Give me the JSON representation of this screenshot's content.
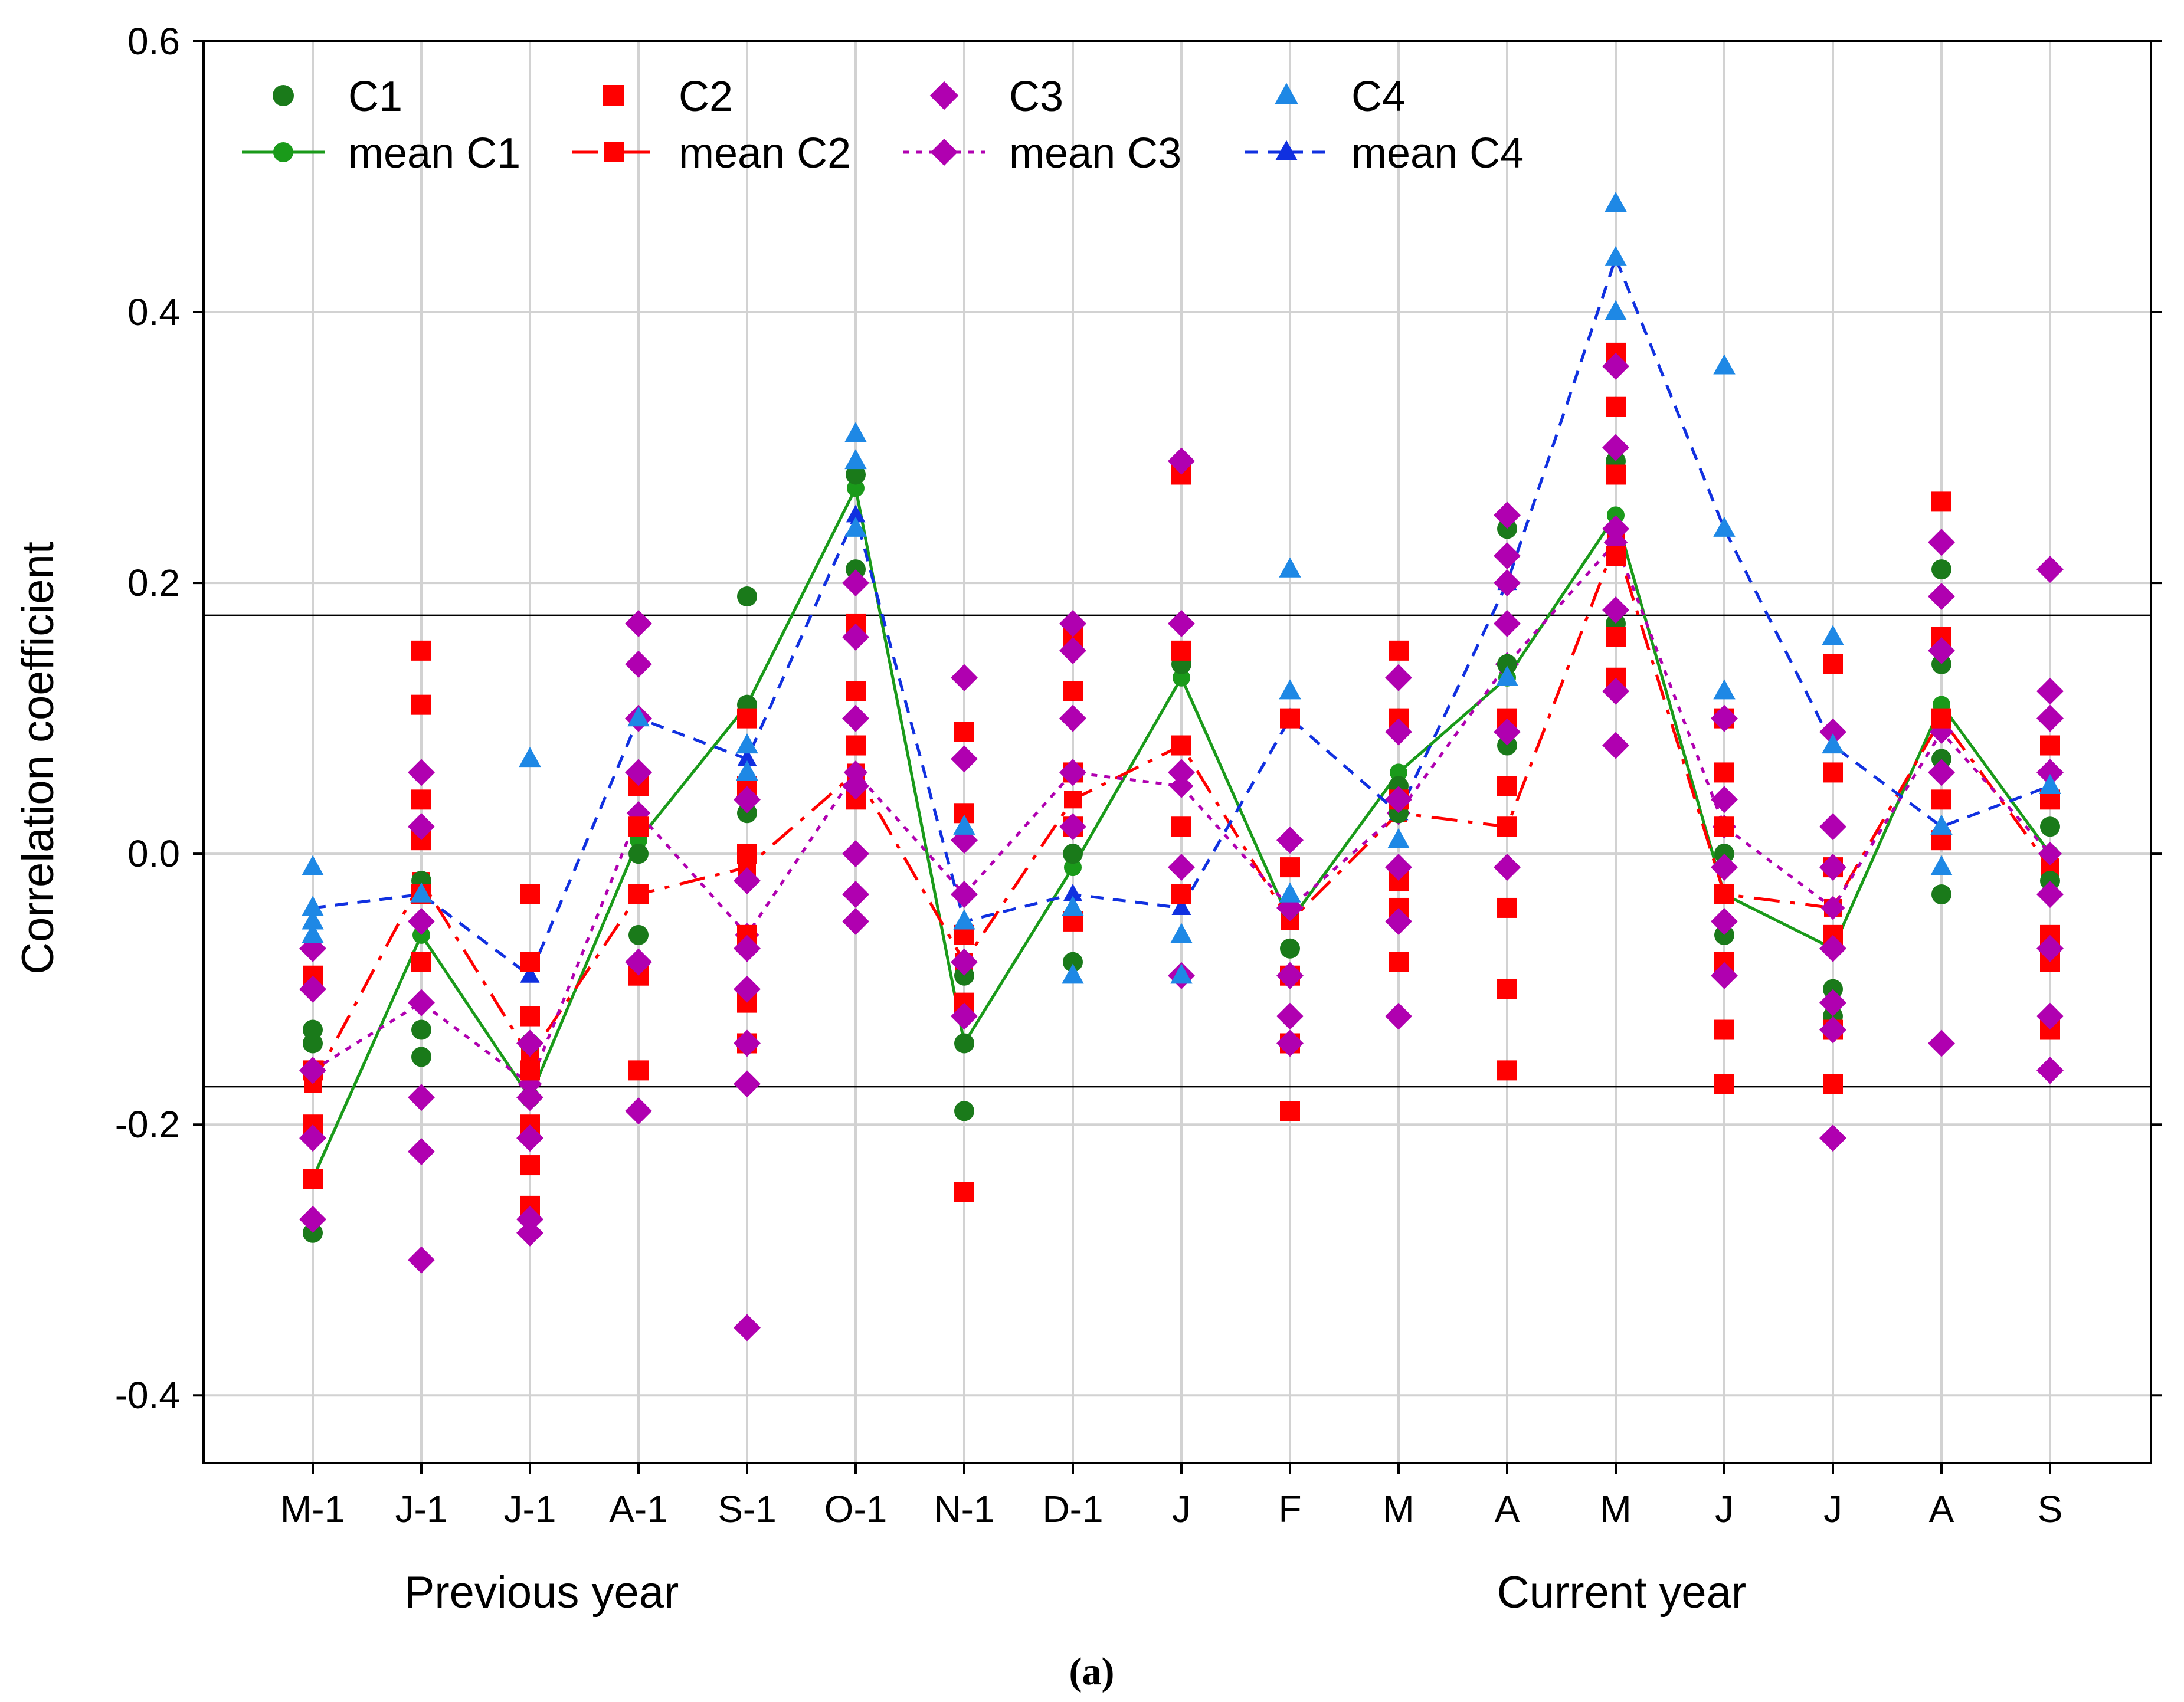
{
  "chart_data": {
    "type": "scatter",
    "ylabel": "Correlation coefficient",
    "ylim": [
      -0.45,
      0.6
    ],
    "yticks": [
      "0.6",
      "0.4",
      "0.2",
      "0.0",
      "-0.2",
      "-0.4"
    ],
    "categories": [
      "M-1",
      "J-1",
      "J-1",
      "A-1",
      "S-1",
      "O-1",
      "N-1",
      "D-1",
      "J",
      "F",
      "M",
      "A",
      "M",
      "J",
      "J",
      "A",
      "S"
    ],
    "group_labels": [
      "Previous year",
      "Current year"
    ],
    "caption": "(a)",
    "grid": true,
    "legend_position": "top-left",
    "significance_lines": [
      0.176,
      -0.172
    ],
    "series": [
      {
        "name": "C1",
        "marker": "circle",
        "color": "#1a7a1a",
        "points": [
          [
            0,
            -0.13
          ],
          [
            0,
            -0.14
          ],
          [
            0,
            -0.24
          ],
          [
            0,
            -0.28
          ],
          [
            1,
            -0.02
          ],
          [
            1,
            -0.13
          ],
          [
            1,
            -0.15
          ],
          [
            2,
            -0.14
          ],
          [
            2,
            -0.16
          ],
          [
            2,
            -0.18
          ],
          [
            3,
            0.05
          ],
          [
            3,
            0.0
          ],
          [
            3,
            -0.06
          ],
          [
            4,
            0.19
          ],
          [
            4,
            0.11
          ],
          [
            4,
            0.03
          ],
          [
            5,
            0.28
          ],
          [
            5,
            0.21
          ],
          [
            6,
            -0.09
          ],
          [
            6,
            -0.14
          ],
          [
            6,
            -0.19
          ],
          [
            7,
            0.06
          ],
          [
            7,
            0.0
          ],
          [
            7,
            -0.08
          ],
          [
            8,
            0.14
          ],
          [
            8,
            0.08
          ],
          [
            9,
            -0.04
          ],
          [
            9,
            -0.07
          ],
          [
            10,
            0.1
          ],
          [
            10,
            0.05
          ],
          [
            10,
            0.03
          ],
          [
            11,
            0.24
          ],
          [
            11,
            0.14
          ],
          [
            11,
            0.08
          ],
          [
            12,
            0.33
          ],
          [
            12,
            0.29
          ],
          [
            12,
            0.17
          ],
          [
            13,
            0.0
          ],
          [
            13,
            -0.06
          ],
          [
            14,
            -0.1
          ],
          [
            14,
            -0.12
          ],
          [
            15,
            0.21
          ],
          [
            15,
            0.14
          ],
          [
            15,
            0.07
          ],
          [
            15,
            -0.03
          ],
          [
            16,
            0.02
          ],
          [
            16,
            -0.02
          ]
        ]
      },
      {
        "name": "C2",
        "marker": "square",
        "color": "#ff0000",
        "points": [
          [
            0,
            -0.09
          ],
          [
            0,
            -0.16
          ],
          [
            0,
            -0.2
          ],
          [
            0,
            -0.24
          ],
          [
            1,
            0.15
          ],
          [
            1,
            0.11
          ],
          [
            1,
            0.04
          ],
          [
            1,
            0.01
          ],
          [
            1,
            -0.03
          ],
          [
            1,
            -0.08
          ],
          [
            2,
            -0.03
          ],
          [
            2,
            -0.08
          ],
          [
            2,
            -0.12
          ],
          [
            2,
            -0.16
          ],
          [
            2,
            -0.2
          ],
          [
            2,
            -0.23
          ],
          [
            2,
            -0.26
          ],
          [
            3,
            0.05
          ],
          [
            3,
            0.02
          ],
          [
            3,
            -0.03
          ],
          [
            3,
            -0.09
          ],
          [
            3,
            -0.16
          ],
          [
            4,
            0.1
          ],
          [
            4,
            0.05
          ],
          [
            4,
            0.0
          ],
          [
            4,
            -0.06
          ],
          [
            4,
            -0.11
          ],
          [
            4,
            -0.14
          ],
          [
            5,
            0.17
          ],
          [
            5,
            0.12
          ],
          [
            5,
            0.08
          ],
          [
            5,
            0.04
          ],
          [
            6,
            0.09
          ],
          [
            6,
            0.03
          ],
          [
            6,
            -0.06
          ],
          [
            6,
            -0.11
          ],
          [
            6,
            -0.25
          ],
          [
            7,
            0.16
          ],
          [
            7,
            0.12
          ],
          [
            7,
            0.06
          ],
          [
            7,
            0.02
          ],
          [
            7,
            -0.05
          ],
          [
            8,
            0.28
          ],
          [
            8,
            0.15
          ],
          [
            8,
            0.08
          ],
          [
            8,
            0.02
          ],
          [
            8,
            -0.03
          ],
          [
            9,
            0.1
          ],
          [
            9,
            -0.01
          ],
          [
            9,
            -0.09
          ],
          [
            9,
            -0.14
          ],
          [
            9,
            -0.19
          ],
          [
            10,
            0.15
          ],
          [
            10,
            0.1
          ],
          [
            10,
            0.04
          ],
          [
            10,
            -0.02
          ],
          [
            10,
            -0.04
          ],
          [
            10,
            -0.08
          ],
          [
            11,
            0.1
          ],
          [
            11,
            0.05
          ],
          [
            11,
            0.02
          ],
          [
            11,
            -0.04
          ],
          [
            11,
            -0.1
          ],
          [
            11,
            -0.16
          ],
          [
            12,
            0.37
          ],
          [
            12,
            0.33
          ],
          [
            12,
            0.28
          ],
          [
            12,
            0.22
          ],
          [
            12,
            0.16
          ],
          [
            12,
            0.13
          ],
          [
            13,
            0.1
          ],
          [
            13,
            0.06
          ],
          [
            13,
            0.02
          ],
          [
            13,
            -0.03
          ],
          [
            13,
            -0.08
          ],
          [
            13,
            -0.13
          ],
          [
            13,
            -0.17
          ],
          [
            14,
            0.14
          ],
          [
            14,
            0.06
          ],
          [
            14,
            -0.01
          ],
          [
            14,
            -0.06
          ],
          [
            14,
            -0.13
          ],
          [
            14,
            -0.17
          ],
          [
            15,
            0.26
          ],
          [
            15,
            0.16
          ],
          [
            15,
            0.1
          ],
          [
            15,
            0.04
          ],
          [
            15,
            0.01
          ],
          [
            16,
            0.08
          ],
          [
            16,
            0.04
          ],
          [
            16,
            -0.06
          ],
          [
            16,
            -0.08
          ],
          [
            16,
            -0.13
          ]
        ]
      },
      {
        "name": "C3",
        "marker": "diamond",
        "color": "#b000b0",
        "points": [
          [
            0,
            -0.07
          ],
          [
            0,
            -0.1
          ],
          [
            0,
            -0.16
          ],
          [
            0,
            -0.21
          ],
          [
            0,
            -0.27
          ],
          [
            1,
            0.06
          ],
          [
            1,
            0.02
          ],
          [
            1,
            -0.05
          ],
          [
            1,
            -0.11
          ],
          [
            1,
            -0.18
          ],
          [
            1,
            -0.22
          ],
          [
            1,
            -0.3
          ],
          [
            2,
            -0.14
          ],
          [
            2,
            -0.18
          ],
          [
            2,
            -0.21
          ],
          [
            2,
            -0.27
          ],
          [
            2,
            -0.28
          ],
          [
            3,
            0.17
          ],
          [
            3,
            0.14
          ],
          [
            3,
            0.1
          ],
          [
            3,
            0.06
          ],
          [
            3,
            -0.08
          ],
          [
            3,
            -0.19
          ],
          [
            4,
            0.04
          ],
          [
            4,
            -0.02
          ],
          [
            4,
            -0.07
          ],
          [
            4,
            -0.1
          ],
          [
            4,
            -0.14
          ],
          [
            4,
            -0.17
          ],
          [
            4,
            -0.35
          ],
          [
            5,
            0.2
          ],
          [
            5,
            0.16
          ],
          [
            5,
            0.1
          ],
          [
            5,
            0.05
          ],
          [
            5,
            0.0
          ],
          [
            5,
            -0.03
          ],
          [
            5,
            -0.05
          ],
          [
            6,
            0.13
          ],
          [
            6,
            0.07
          ],
          [
            6,
            0.01
          ],
          [
            6,
            -0.03
          ],
          [
            6,
            -0.08
          ],
          [
            6,
            -0.12
          ],
          [
            7,
            0.17
          ],
          [
            7,
            0.15
          ],
          [
            7,
            0.1
          ],
          [
            7,
            0.06
          ],
          [
            7,
            0.02
          ],
          [
            8,
            0.29
          ],
          [
            8,
            0.17
          ],
          [
            8,
            0.06
          ],
          [
            8,
            -0.01
          ],
          [
            8,
            -0.09
          ],
          [
            9,
            0.01
          ],
          [
            9,
            -0.04
          ],
          [
            9,
            -0.09
          ],
          [
            9,
            -0.12
          ],
          [
            9,
            -0.14
          ],
          [
            10,
            0.13
          ],
          [
            10,
            0.09
          ],
          [
            10,
            0.04
          ],
          [
            10,
            -0.01
          ],
          [
            10,
            -0.05
          ],
          [
            10,
            -0.12
          ],
          [
            11,
            0.25
          ],
          [
            11,
            0.22
          ],
          [
            11,
            0.2
          ],
          [
            11,
            0.17
          ],
          [
            11,
            0.09
          ],
          [
            11,
            -0.01
          ],
          [
            12,
            0.36
          ],
          [
            12,
            0.3
          ],
          [
            12,
            0.24
          ],
          [
            12,
            0.18
          ],
          [
            12,
            0.12
          ],
          [
            12,
            0.08
          ],
          [
            13,
            0.1
          ],
          [
            13,
            0.04
          ],
          [
            13,
            -0.01
          ],
          [
            13,
            -0.05
          ],
          [
            13,
            -0.09
          ],
          [
            14,
            0.09
          ],
          [
            14,
            0.02
          ],
          [
            14,
            -0.01
          ],
          [
            14,
            -0.07
          ],
          [
            14,
            -0.11
          ],
          [
            14,
            -0.13
          ],
          [
            14,
            -0.21
          ],
          [
            15,
            0.23
          ],
          [
            15,
            0.19
          ],
          [
            15,
            0.15
          ],
          [
            15,
            0.06
          ],
          [
            15,
            -0.14
          ],
          [
            16,
            0.21
          ],
          [
            16,
            0.12
          ],
          [
            16,
            0.1
          ],
          [
            16,
            0.06
          ],
          [
            16,
            -0.03
          ],
          [
            16,
            -0.07
          ],
          [
            16,
            -0.12
          ],
          [
            16,
            -0.16
          ]
        ]
      },
      {
        "name": "C4",
        "marker": "triangle",
        "color": "#1e88e5",
        "points": [
          [
            0,
            -0.01
          ],
          [
            0,
            -0.04
          ],
          [
            0,
            -0.05
          ],
          [
            0,
            -0.06
          ],
          [
            1,
            -0.03
          ],
          [
            2,
            0.07
          ],
          [
            3,
            0.1
          ],
          [
            4,
            0.08
          ],
          [
            4,
            0.06
          ],
          [
            5,
            0.31
          ],
          [
            5,
            0.29
          ],
          [
            5,
            0.24
          ],
          [
            6,
            0.02
          ],
          [
            6,
            -0.05
          ],
          [
            7,
            -0.04
          ],
          [
            7,
            -0.09
          ],
          [
            8,
            -0.06
          ],
          [
            8,
            -0.09
          ],
          [
            9,
            0.21
          ],
          [
            9,
            0.12
          ],
          [
            9,
            -0.03
          ],
          [
            10,
            0.01
          ],
          [
            11,
            0.13
          ],
          [
            12,
            0.48
          ],
          [
            12,
            0.44
          ],
          [
            12,
            0.4
          ],
          [
            13,
            0.36
          ],
          [
            13,
            0.24
          ],
          [
            13,
            0.12
          ],
          [
            14,
            0.16
          ],
          [
            14,
            0.08
          ],
          [
            15,
            0.02
          ],
          [
            15,
            -0.01
          ],
          [
            16,
            0.05
          ]
        ]
      },
      {
        "name": "mean C1",
        "marker": "circle",
        "line": "solid",
        "color": "#1a9a1a",
        "values": [
          -0.24,
          -0.06,
          -0.18,
          0.01,
          0.11,
          0.27,
          -0.14,
          -0.01,
          0.13,
          -0.05,
          0.06,
          0.13,
          0.25,
          -0.03,
          -0.07,
          0.11,
          0.0
        ]
      },
      {
        "name": "mean C2",
        "marker": "square",
        "line": "dashdot",
        "color": "#ff0000",
        "values": [
          -0.17,
          -0.02,
          -0.15,
          -0.03,
          -0.01,
          0.06,
          -0.08,
          0.04,
          0.08,
          -0.05,
          0.03,
          0.02,
          0.23,
          -0.03,
          -0.04,
          0.1,
          -0.01
        ]
      },
      {
        "name": "mean C3",
        "marker": "diamond",
        "line": "dotted",
        "color": "#b000b0",
        "values": [
          -0.16,
          -0.11,
          -0.17,
          0.03,
          -0.06,
          0.06,
          -0.03,
          0.06,
          0.05,
          -0.04,
          0.03,
          0.14,
          0.23,
          0.02,
          -0.04,
          0.09,
          0.0
        ]
      },
      {
        "name": "mean C4",
        "marker": "triangle",
        "line": "dashed",
        "color": "#1030e0",
        "values": [
          -0.04,
          -0.03,
          -0.09,
          0.1,
          0.07,
          0.25,
          -0.05,
          -0.03,
          -0.04,
          0.1,
          0.03,
          0.2,
          0.44,
          0.24,
          0.08,
          0.02,
          0.05
        ]
      }
    ]
  }
}
